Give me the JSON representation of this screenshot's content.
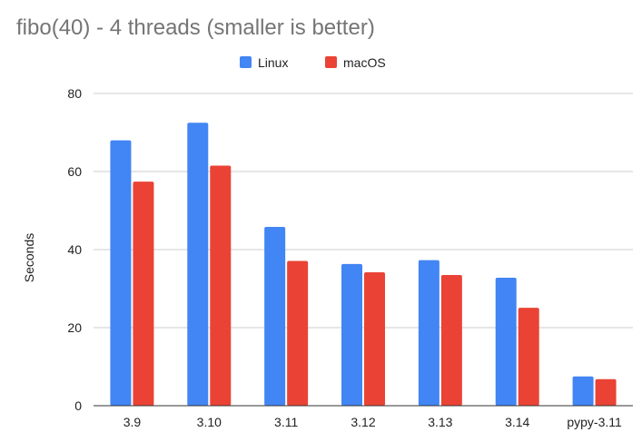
{
  "chart_data": {
    "type": "bar",
    "title": "fibo(40) - 4 threads (smaller is better)",
    "xlabel": "",
    "ylabel": "Seconds",
    "categories": [
      "3.9",
      "3.10",
      "3.11",
      "3.12",
      "3.13",
      "3.14",
      "pypy-3.11"
    ],
    "series": [
      {
        "name": "Linux",
        "color": "#4285f4",
        "values": [
          68,
          72.5,
          45.8,
          36.3,
          37.3,
          32.8,
          7.5
        ]
      },
      {
        "name": "macOS",
        "color": "#ea4335",
        "values": [
          57.4,
          61.5,
          37.1,
          34.2,
          33.5,
          25.1,
          6.8
        ]
      }
    ],
    "ylim": [
      0,
      80
    ],
    "yticks": [
      0,
      20,
      40,
      60,
      80
    ],
    "grid": true,
    "legend_position": "top"
  }
}
